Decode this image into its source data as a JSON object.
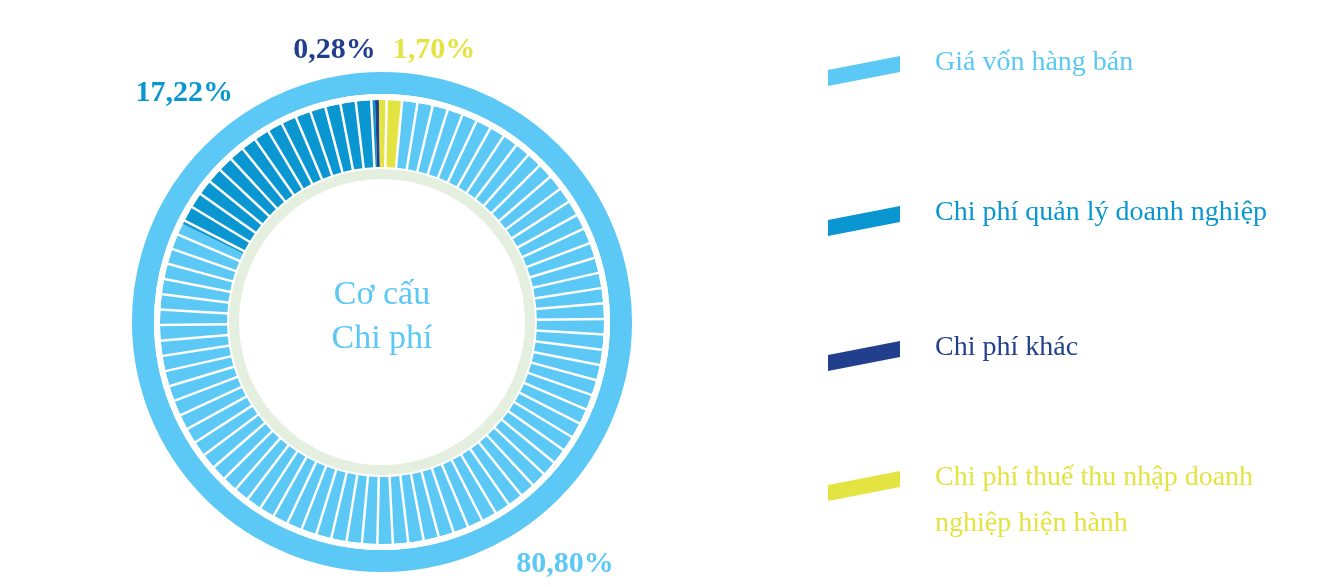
{
  "chart_data": {
    "type": "donut",
    "title": "Cơ cấu\nChi phí",
    "categories": [
      "Giá vốn hàng bán",
      "Chi phí quản lý doanh nghiệp",
      "Chi phí khác",
      "Chi phí thuế thu nhập doanh nghiệp hiện hành"
    ],
    "values": [
      80.8,
      17.22,
      0.28,
      1.7
    ],
    "colors": [
      "#5bc8f5",
      "#0a96d0",
      "#213f8c",
      "#e3e342"
    ],
    "value_labels": [
      "80,80%",
      "17,22%",
      "0,28%",
      "1,70%"
    ],
    "legend": "right"
  }
}
